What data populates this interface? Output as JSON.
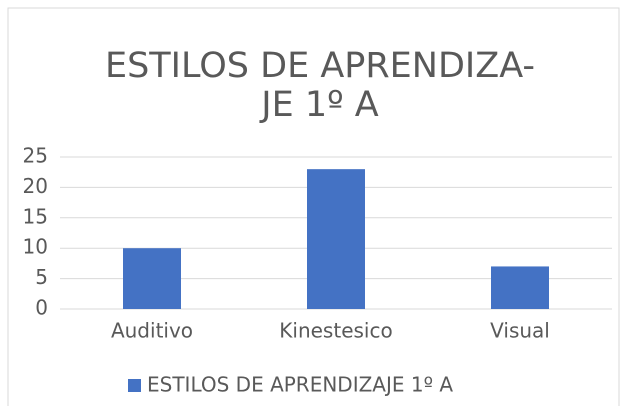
{
  "chart_data": {
    "type": "bar",
    "title": [
      "ESTILOS DE APRENDIZA-",
      "JE 1º A"
    ],
    "categories": [
      "Auditivo",
      "Kinestesico",
      "Visual"
    ],
    "series": [
      {
        "name": "ESTILOS DE APRENDIZAJE 1º A",
        "color": "#4472c4",
        "values": [
          10,
          23,
          7
        ]
      }
    ],
    "ylim": [
      0,
      25
    ],
    "yticks": [
      0,
      5,
      10,
      15,
      20,
      25
    ],
    "grid": true,
    "legend": "bottom"
  }
}
